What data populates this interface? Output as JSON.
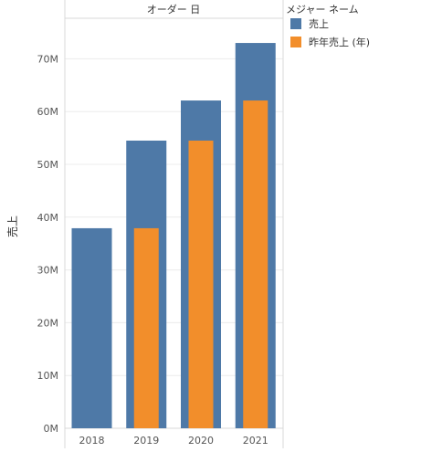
{
  "chart_data": {
    "type": "bar",
    "header": "オーダー 日",
    "ylabel": "売上",
    "categories": [
      "2018",
      "2019",
      "2020",
      "2021"
    ],
    "yticks": [
      "0M",
      "10M",
      "20M",
      "30M",
      "40M",
      "50M",
      "60M",
      "70M"
    ],
    "ylim": [
      0,
      75
    ],
    "y_unit": "M",
    "series": [
      {
        "name": "売上",
        "color": "#4e79a7",
        "values": [
          37.9,
          54.5,
          62.1,
          73.0
        ]
      },
      {
        "name": "昨年売上 (年)",
        "color": "#f28e2b",
        "values": [
          null,
          37.9,
          54.5,
          62.1
        ]
      }
    ],
    "legend": {
      "title": "メジャー ネーム",
      "position": "top-right"
    },
    "grid": true
  }
}
